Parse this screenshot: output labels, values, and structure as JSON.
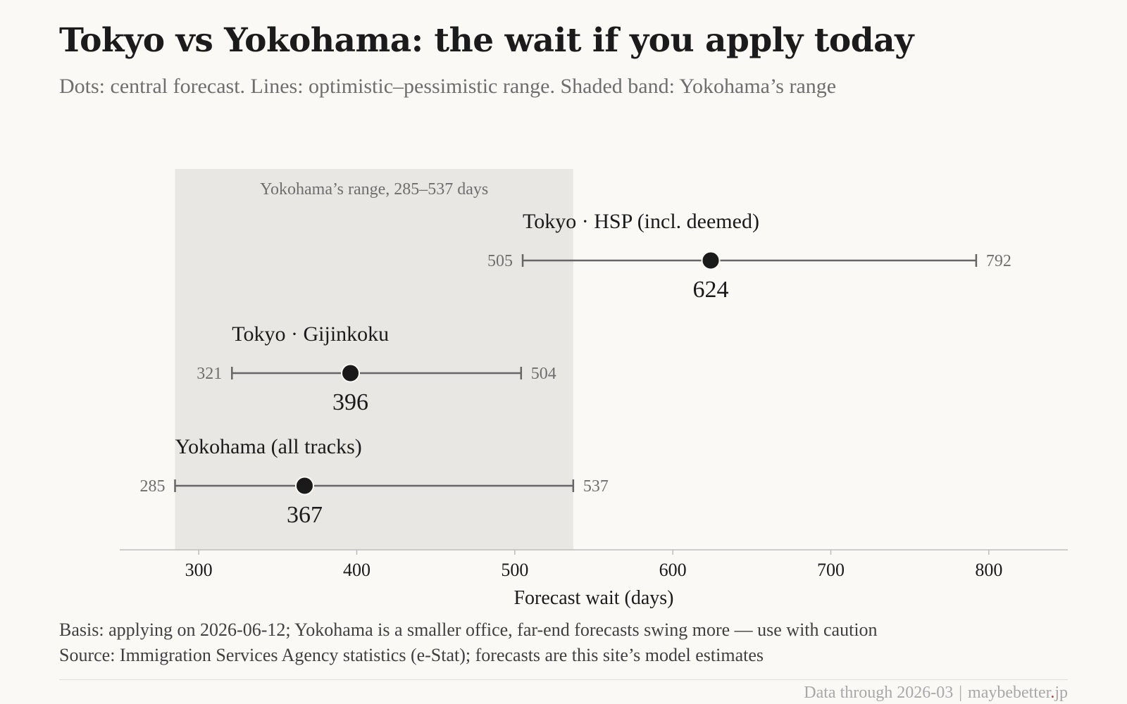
{
  "title": "Tokyo vs Yokohama: the wait if you apply today",
  "subtitle": "Dots: central forecast. Lines: optimistic–pessimistic range. Shaded band: Yokohama’s range",
  "chart_data": {
    "type": "dot-range",
    "xlabel": "Forecast wait (days)",
    "xlim": [
      250,
      850
    ],
    "xticks": [
      300,
      400,
      500,
      600,
      700,
      800
    ],
    "band": {
      "label": "Yokohama’s range, 285–537 days",
      "from": 285,
      "to": 537,
      "color": "#e8e7e3"
    },
    "series": [
      {
        "name": "Tokyo · HSP (incl. deemed)",
        "low": 505,
        "central": 624,
        "high": 792
      },
      {
        "name": "Tokyo · Gijinkoku",
        "low": 321,
        "central": 396,
        "high": 504
      },
      {
        "name": "Yokohama (all tracks)",
        "low": 285,
        "central": 367,
        "high": 537
      }
    ],
    "colors": {
      "dot": "#1a1a1a",
      "line": "#666666",
      "axis": "#bdbdbd",
      "muted": "#6e6e6e"
    }
  },
  "footer": {
    "basis": "Basis: applying on 2026-06-12; Yokohama is a smaller office, far-end forecasts swing more — use with caution",
    "source": "Source: Immigration Services Agency statistics (e-Stat); forecasts are this site’s model estimates",
    "data_through": "Data through 2026-03",
    "separator": "|",
    "site_name": "maybebetter",
    "site_dot": ".",
    "site_tld": "jp"
  }
}
